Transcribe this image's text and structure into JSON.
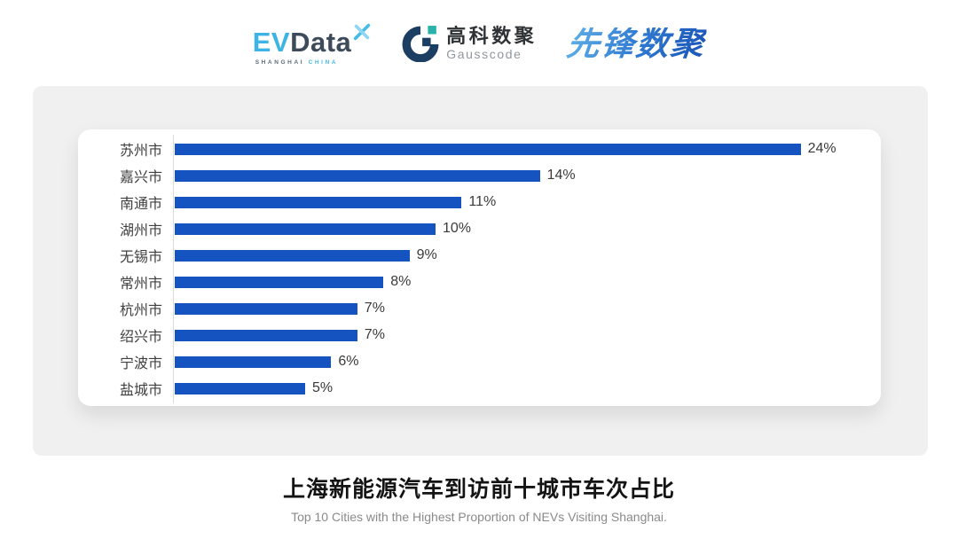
{
  "header": {
    "evdata": {
      "ev": "EV",
      "data": "Data",
      "sub_left": "SHANGHAI",
      "sub_right": "CHINA"
    },
    "gausscode": {
      "cn": "高科数聚",
      "en": "Gausscode"
    },
    "xianfeng": {
      "text": "先锋数聚"
    }
  },
  "chart_data": {
    "type": "bar",
    "orientation": "horizontal",
    "categories": [
      "苏州市",
      "嘉兴市",
      "南通市",
      "湖州市",
      "无锡市",
      "常州市",
      "杭州市",
      "绍兴市",
      "宁波市",
      "盐城市"
    ],
    "values": [
      24,
      14,
      11,
      10,
      9,
      8,
      7,
      7,
      6,
      5
    ],
    "unit": "%",
    "value_labels": [
      "24%",
      "14%",
      "11%",
      "10%",
      "9%",
      "8%",
      "7%",
      "7%",
      "6%",
      "5%"
    ],
    "title": "上海新能源汽车到访前十城市车次占比",
    "subtitle": "Top 10 Cities with the Highest Proportion of  NEVs Visiting Shanghai.",
    "xlim": [
      0,
      25
    ],
    "grid": false,
    "legend": false,
    "bar_color": "#1553c0",
    "axis_line_color": "#dadada"
  },
  "colors": {
    "panel_background": "#f0f0f1",
    "card_background": "#ffffff",
    "bar_blue": "#1553c0",
    "evdata_light_blue": "#3cb4e5",
    "evdata_dark": "#3d4a5a",
    "gausscode_navy": "#1d3e63",
    "gausscode_teal": "#29b3a8",
    "xianfeng_blue": "#2b74cd",
    "label_text": "#3f3f3f",
    "subtitle_grey": "#8a8a8a"
  }
}
